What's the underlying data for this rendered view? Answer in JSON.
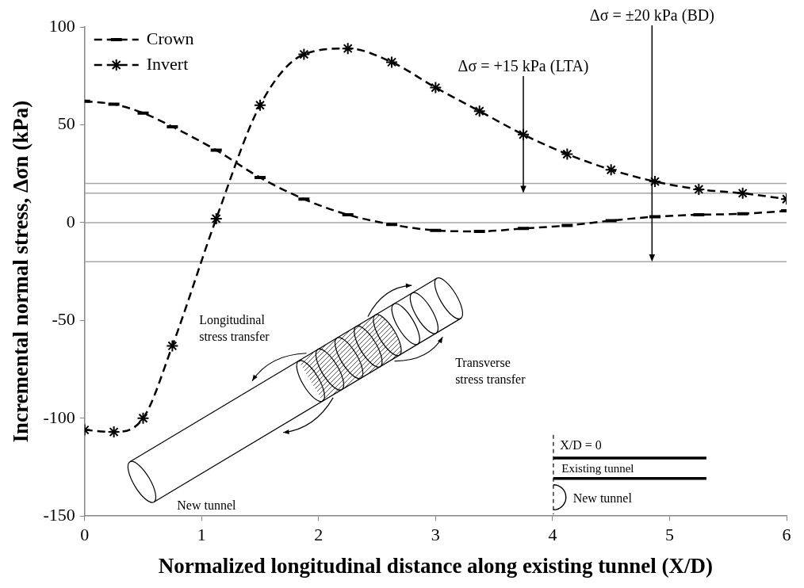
{
  "chart_data": {
    "type": "line",
    "x_label": "Normalized longitudinal distance along existing tunnel (X/D)",
    "y_label": "Incremental normal stress, Δσn (kPa)",
    "x": [
      0,
      0.25,
      0.5,
      0.75,
      1.125,
      1.5,
      1.875,
      2.25,
      2.625,
      3,
      3.375,
      3.75,
      4.125,
      4.5,
      4.875,
      5.25,
      5.625,
      6
    ],
    "series": [
      {
        "name": "Crown",
        "color": "#000000",
        "marker": "dash",
        "line_style": "dashed",
        "values": [
          62,
          60.5,
          56,
          49,
          37,
          23,
          12,
          4,
          -1,
          -4,
          -4.5,
          -3,
          -1.5,
          1,
          3,
          4,
          4.5,
          6
        ]
      },
      {
        "name": "Invert",
        "color": "#000000",
        "marker": "star",
        "line_style": "dashed",
        "values": [
          -106,
          -107,
          -100,
          -63,
          2,
          60,
          86,
          89,
          82,
          69,
          57,
          45,
          35,
          27,
          21,
          17,
          15,
          12
        ]
      }
    ],
    "xlim": [
      0,
      6
    ],
    "xticks": [
      0,
      1,
      2,
      3,
      4,
      5,
      6
    ],
    "ylim": [
      -150,
      100
    ],
    "yticks": [
      -150,
      -100,
      -50,
      0,
      50,
      100
    ],
    "grid": false,
    "legend": "top-left",
    "reference_lines": {
      "values": [
        20,
        15,
        0,
        -20
      ],
      "color": "#a6a6a6"
    },
    "annotations": [
      {
        "text": "Δσ = +15 kPa (LTA)",
        "x": 3.75,
        "y": 15
      },
      {
        "text": "Δσ = ±20 kPa (BD)",
        "x": 4.85,
        "y": -20
      }
    ],
    "inset_labels": {
      "longitudinal": "Longitudinal stress transfer",
      "transverse": "Transverse stress transfer",
      "new_tunnel": "New tunnel",
      "origin": "X/D = 0",
      "existing_tunnel": "Existing tunnel",
      "new_tunnel_plan": "New tunnel"
    }
  }
}
